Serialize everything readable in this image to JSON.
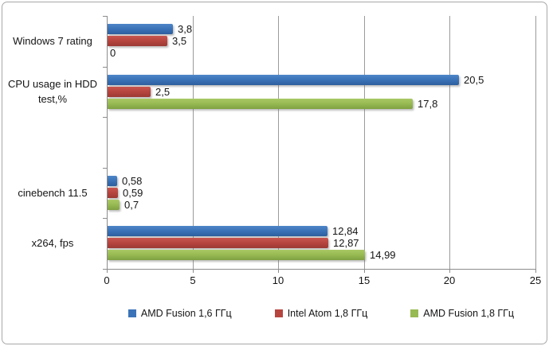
{
  "chart_data": {
    "type": "bar",
    "orientation": "horizontal",
    "title": "",
    "xlabel": "",
    "ylabel": "",
    "categories": [
      "Windows 7 rating",
      "CPU usage in HDD\ntest,%",
      "",
      "cinebench 11.5",
      "x264, fps"
    ],
    "series": [
      {
        "name": "AMD Fusion 1,6 ГГц",
        "color": "#3b73b8",
        "values": [
          3.8,
          20.5,
          null,
          0.58,
          12.84
        ],
        "labels": [
          "3,8",
          "20,5",
          null,
          "0,58",
          "12,84"
        ]
      },
      {
        "name": "Intel Atom 1,8 ГГц",
        "color": "#b7453f",
        "values": [
          3.5,
          2.5,
          null,
          0.59,
          12.87
        ],
        "labels": [
          "3,5",
          "2,5",
          null,
          "0,59",
          "12,87"
        ]
      },
      {
        "name": "AMD Fusion 1,8 ГГц",
        "color": "#98ba53",
        "values": [
          0,
          17.8,
          null,
          0.7,
          14.99
        ],
        "labels": [
          "0",
          "17,8",
          null,
          "0,7",
          "14,99"
        ]
      }
    ],
    "xlim": [
      0,
      25
    ],
    "xticks": [
      0,
      5,
      10,
      15,
      20,
      25
    ],
    "xtick_labels": [
      "0",
      "5",
      "10",
      "15",
      "20",
      "25"
    ],
    "grid": true,
    "legend_position": "bottom-center",
    "colors": {
      "gridline": "#9b9b9b",
      "axis": "#8c8c8c",
      "text": "#141414",
      "frame_border": "#a8a8a8",
      "background": "#ffffff"
    }
  }
}
